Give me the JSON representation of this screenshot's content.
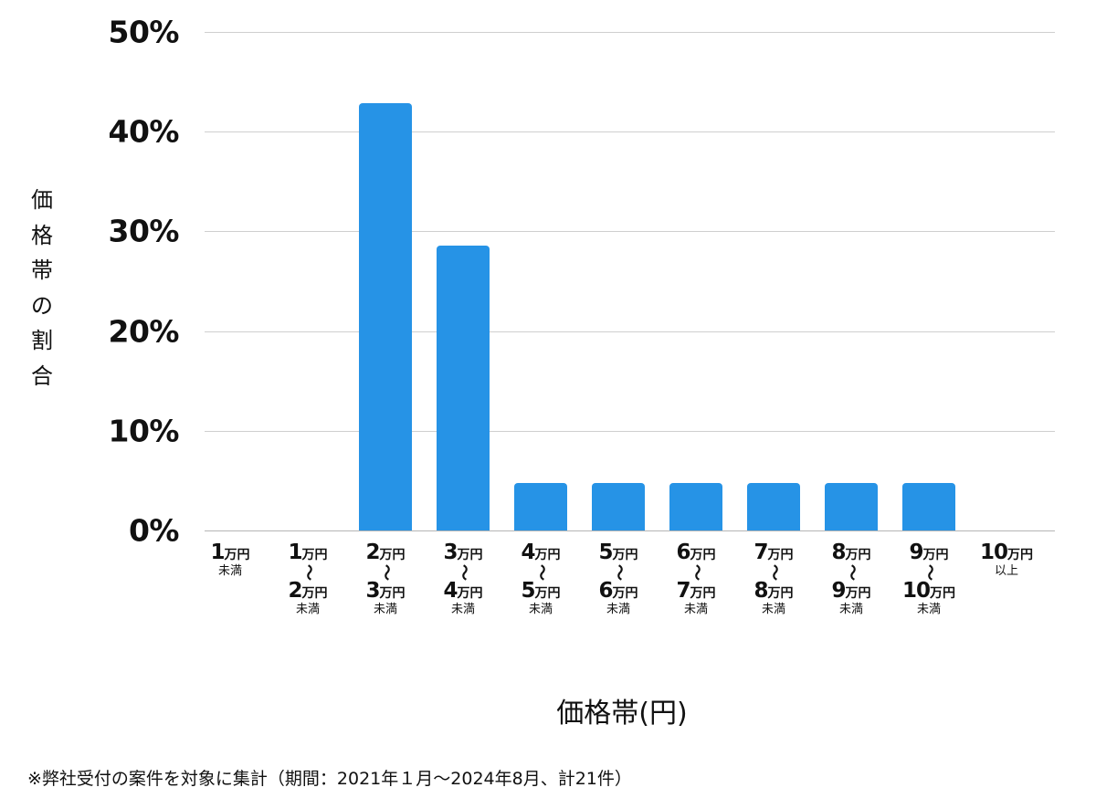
{
  "chart_data": {
    "type": "bar",
    "title": "",
    "xlabel": "価格帯(円)",
    "ylabel": "価格帯の割合",
    "ylim": [
      0,
      50
    ],
    "yticks": [
      "0%",
      "10%",
      "20%",
      "30%",
      "40%",
      "50%"
    ],
    "ytick_values": [
      0,
      10,
      20,
      30,
      40,
      50
    ],
    "grid": true,
    "legend": "none",
    "bar_color": "#2693E6",
    "categories": [
      "1万円未満",
      "1万円〜2万円未満",
      "2万円〜3万円未満",
      "3万円〜4万円未満",
      "4万円〜5万円未満",
      "5万円〜6万円未満",
      "6万円〜7万円未満",
      "7万円〜8万円未満",
      "8万円〜9万円未満",
      "9万円〜10万円未満",
      "10万円以上"
    ],
    "values": [
      0,
      0,
      42.9,
      28.6,
      4.8,
      4.8,
      4.8,
      4.8,
      4.8,
      4.8,
      0
    ],
    "tick_labels": [
      {
        "lines": [
          {
            "num": "1",
            "unit": "万円"
          }
        ],
        "sub": "未満",
        "range": false
      },
      {
        "lines": [
          {
            "num": "1",
            "unit": "万円"
          },
          {
            "num": "2",
            "unit": "万円"
          }
        ],
        "sub": "未満",
        "range": true
      },
      {
        "lines": [
          {
            "num": "2",
            "unit": "万円"
          },
          {
            "num": "3",
            "unit": "万円"
          }
        ],
        "sub": "未満",
        "range": true
      },
      {
        "lines": [
          {
            "num": "3",
            "unit": "万円"
          },
          {
            "num": "4",
            "unit": "万円"
          }
        ],
        "sub": "未満",
        "range": true
      },
      {
        "lines": [
          {
            "num": "4",
            "unit": "万円"
          },
          {
            "num": "5",
            "unit": "万円"
          }
        ],
        "sub": "未満",
        "range": true
      },
      {
        "lines": [
          {
            "num": "5",
            "unit": "万円"
          },
          {
            "num": "6",
            "unit": "万円"
          }
        ],
        "sub": "未満",
        "range": true
      },
      {
        "lines": [
          {
            "num": "6",
            "unit": "万円"
          },
          {
            "num": "7",
            "unit": "万円"
          }
        ],
        "sub": "未満",
        "range": true
      },
      {
        "lines": [
          {
            "num": "7",
            "unit": "万円"
          },
          {
            "num": "8",
            "unit": "万円"
          }
        ],
        "sub": "未満",
        "range": true
      },
      {
        "lines": [
          {
            "num": "8",
            "unit": "万円"
          },
          {
            "num": "9",
            "unit": "万円"
          }
        ],
        "sub": "未満",
        "range": true
      },
      {
        "lines": [
          {
            "num": "9",
            "unit": "万円"
          },
          {
            "num": "10",
            "unit": "万円"
          }
        ],
        "sub": "未満",
        "range": true
      },
      {
        "lines": [
          {
            "num": "10",
            "unit": "万円"
          }
        ],
        "sub": "以上",
        "range": false
      }
    ],
    "range_glyph": "〜"
  },
  "labels": {
    "ylabel_chars": [
      "価",
      "格",
      "帯",
      "の",
      "割",
      "合"
    ],
    "xlabel": "価格帯(円)",
    "footnote": "※弊社受付の案件を対象に集計（期間：2021年１月〜2024年8月、計21件）"
  }
}
